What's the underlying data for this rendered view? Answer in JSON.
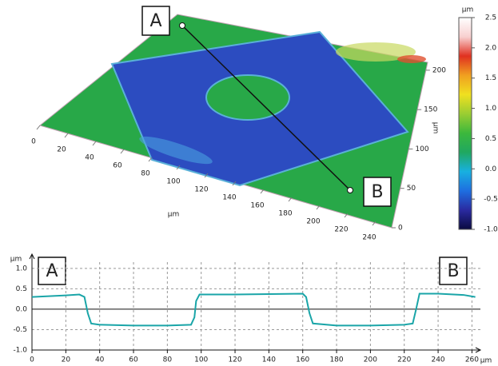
{
  "chart_data": [
    {
      "type": "surface",
      "xlabel": "µm",
      "ylabel": "µm",
      "xticks": [
        0,
        20,
        40,
        60,
        80,
        100,
        120,
        140,
        160,
        180,
        200,
        220,
        240
      ],
      "yticks": [
        0,
        50,
        100,
        150,
        200
      ],
      "annotations": [
        "A",
        "B"
      ],
      "colorbar": {
        "label": "µm",
        "lim": [
          -1,
          2.5
        ],
        "ticks": [
          2.5,
          {
            "value": 2,
            "label": "2.0"
          },
          1.5,
          {
            "value": 1,
            "label": "1.0"
          },
          0.5,
          {
            "value": 0,
            "label": "0.0"
          },
          -0.5,
          {
            "value": -1,
            "label": "-1.0"
          }
        ],
        "colors": [
          "#0a0a40",
          "#2a2aa0",
          "#1e6ee0",
          "#18b0e0",
          "#20a860",
          "#3cb83c",
          "#9acd32",
          "#f0e020",
          "#f0a020",
          "#e03020",
          "#f8d0d0",
          "#ffffff"
        ]
      }
    },
    {
      "type": "line",
      "ylabel": "µm",
      "xlabel": "µm",
      "color": "#1aa5a8",
      "xlim": [
        0,
        265
      ],
      "ylim": [
        -1,
        1.35
      ],
      "xticks": [
        0,
        20,
        40,
        60,
        80,
        100,
        120,
        140,
        160,
        180,
        200,
        220,
        240,
        260
      ],
      "yticks": [
        {
          "value": 1,
          "label": "1.0"
        },
        0.5,
        {
          "value": 0,
          "label": "0.0"
        },
        -0.5,
        {
          "value": -1,
          "label": "-1.0"
        }
      ],
      "annotations": [
        "A",
        "B"
      ],
      "x": [
        0,
        10,
        20,
        28,
        31,
        33,
        35,
        40,
        60,
        80,
        94,
        96,
        97,
        99,
        120,
        140,
        160,
        162,
        164,
        166,
        180,
        200,
        220,
        225,
        227,
        229,
        240,
        255,
        262
      ],
      "values": [
        0.3,
        0.32,
        0.34,
        0.36,
        0.3,
        -0.1,
        -0.35,
        -0.38,
        -0.4,
        -0.4,
        -0.38,
        -0.2,
        0.2,
        0.36,
        0.36,
        0.37,
        0.38,
        0.3,
        -0.1,
        -0.35,
        -0.4,
        -0.4,
        -0.38,
        -0.35,
        0.0,
        0.38,
        0.38,
        0.35,
        0.3
      ]
    }
  ]
}
